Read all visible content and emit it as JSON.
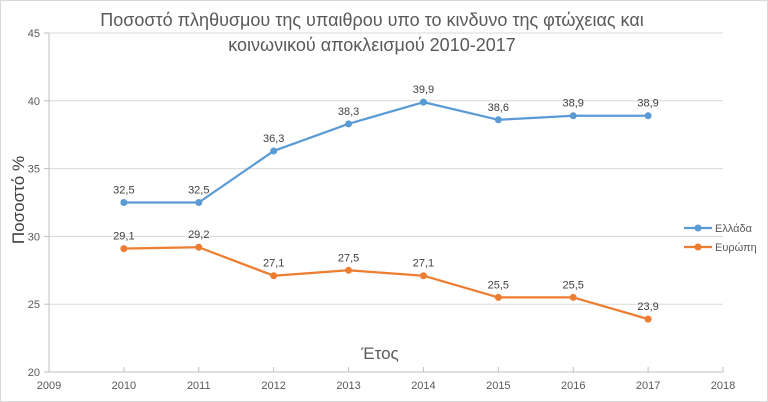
{
  "chart_data": {
    "type": "line",
    "title_lines": [
      "Ποσοστό πληθυσμου της υπαιθρου υπο το κινδυνο της φτώχειας και",
      "κοινωνικού αποκλεισμού 2010-2017"
    ],
    "xlabel": "Έτος",
    "ylabel": "Ποσοστό %",
    "x": [
      2010,
      2011,
      2012,
      2013,
      2014,
      2015,
      2016,
      2017
    ],
    "xlim": [
      2009,
      2018
    ],
    "ylim": [
      20,
      45
    ],
    "x_ticks": [
      "2009",
      "2010",
      "2011",
      "2012",
      "2013",
      "2014",
      "2015",
      "2016",
      "2017",
      "2018"
    ],
    "y_ticks": [
      "20",
      "25",
      "30",
      "35",
      "40",
      "45"
    ],
    "grid": "horizontal",
    "legend_position": "right",
    "series": [
      {
        "name": "Ελλάδα",
        "color": "#5b9bd5",
        "values": [
          32.5,
          32.5,
          36.3,
          38.3,
          39.9,
          38.6,
          38.9,
          38.9
        ],
        "labels": [
          "32,5",
          "32,5",
          "36,3",
          "38,3",
          "39,9",
          "38,6",
          "38,9",
          "38,9"
        ]
      },
      {
        "name": "Ευρώπη",
        "color": "#ed7d31",
        "values": [
          29.1,
          29.2,
          27.1,
          27.5,
          27.1,
          25.5,
          25.5,
          23.9
        ],
        "labels": [
          "29,1",
          "29,2",
          "27,1",
          "27,5",
          "27,1",
          "25,5",
          "25,5",
          "23,9"
        ]
      }
    ]
  }
}
